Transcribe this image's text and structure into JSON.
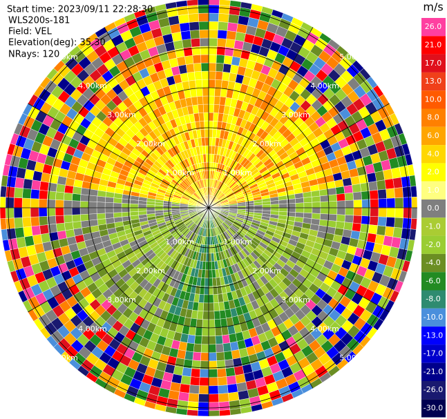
{
  "info": {
    "start_time": "Start time: 2023/09/11 22:28:30",
    "instrument": "WLS200s-181",
    "field": "Field: VEL",
    "elevation": "Elevation(deg): 35.30",
    "nrays": "NRays: 120"
  },
  "range_rings": [
    "1.00km",
    "2.00km",
    "3.00km",
    "4.00km",
    "5.00km"
  ],
  "colorbar": {
    "unit": "m/s",
    "levels": [
      {
        "label": "26.0",
        "color": "#ff3fa0"
      },
      {
        "label": "21.0",
        "color": "#ff0000"
      },
      {
        "label": "17.0",
        "color": "#e0101c"
      },
      {
        "label": "13.0",
        "color": "#f0401a"
      },
      {
        "label": "10.0",
        "color": "#ff5a00"
      },
      {
        "label": "8.0",
        "color": "#ff8000"
      },
      {
        "label": "6.0",
        "color": "#ffa500"
      },
      {
        "label": "4.0",
        "color": "#ffd700"
      },
      {
        "label": "2.0",
        "color": "#ffff00"
      },
      {
        "label": "1.0",
        "color": "#ffff80"
      },
      {
        "label": "0.0",
        "color": "#7f7f7f"
      },
      {
        "label": "-1.0",
        "color": "#aacc33"
      },
      {
        "label": "-2.0",
        "color": "#9acd32"
      },
      {
        "label": "-4.0",
        "color": "#6b8e23"
      },
      {
        "label": "-6.0",
        "color": "#228b22"
      },
      {
        "label": "-8.0",
        "color": "#2e8b70"
      },
      {
        "label": "-10.0",
        "color": "#4a8fdc"
      },
      {
        "label": "-13.0",
        "color": "#0000ff"
      },
      {
        "label": "-17.0",
        "color": "#0000cd"
      },
      {
        "label": "-21.0",
        "color": "#00008b"
      },
      {
        "label": "-26.0",
        "color": "#191970"
      },
      {
        "label": "-30.0",
        "color": "#000050"
      }
    ]
  }
}
